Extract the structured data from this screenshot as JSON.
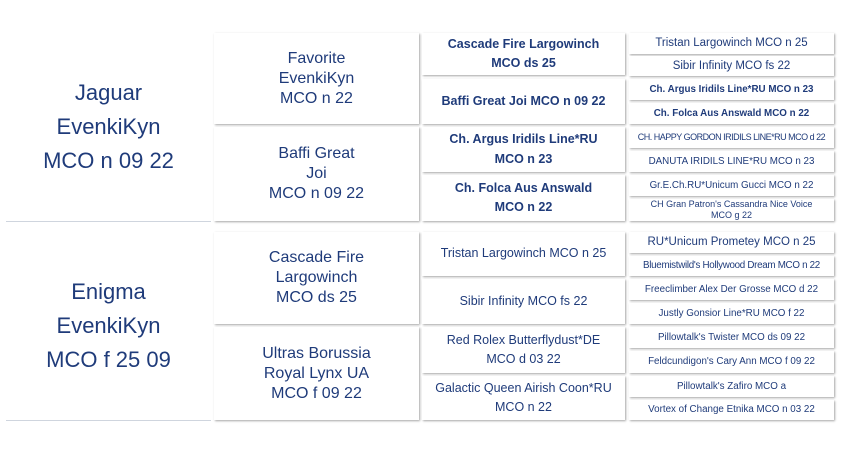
{
  "pedigree": {
    "sire": {
      "name": "Jaguar\nEvenkiKyn\nMCO n 09 22",
      "sire": {
        "name": "Favorite\nEvenkiKyn\nMCO n 22",
        "sire": {
          "name": "Cascade Fire Largowinch\nMCO ds 25",
          "sire": "Tristan Largowinch MCO n 25",
          "dam": "Sibir Infinity  MCO fs 22"
        },
        "dam": {
          "name": "Baffi Great Joi  MCO n 09 22",
          "sire": "Ch. Argus Iridils Line*RU MCO n 23",
          "dam": "Ch. Folca Aus Answald MCO n 22"
        }
      },
      "dam": {
        "name": "Baffi Great\nJoi\nMCO n 09 22",
        "sire": {
          "name": "Ch. Argus Iridils Line*RU\nMCO n 23",
          "sire": "CH. HAPPY GORDON IRIDILS LINE*RU MCO d 22",
          "dam": "DANUTA IRIDILS LINE*RU MCO n 23"
        },
        "dam": {
          "name": "Ch. Folca Aus Answald\nMCO n 22",
          "sire": "Gr.E.Ch.RU*Unicum Gucci MCO n 22",
          "dam": "CH Gran Patron's Cassandra Nice Voice\nMCO g 22"
        }
      }
    },
    "dam": {
      "name": "Enigma\nEvenkiKyn\nMCO f 25 09",
      "sire": {
        "name": "Cascade Fire\nLargowinch\nMCO ds 25",
        "sire": {
          "name": "Tristan Largowinch MCO n 25",
          "sire": "RU*Unicum Prometey MCO n 25",
          "dam": "Bluemistwild's Hollywood Dream MCO n 22"
        },
        "dam": {
          "name": "Sibir Infinity  MCO fs 22",
          "sire": "Freeclimber Alex Der Grosse MCO d 22",
          "dam": "Justly Gonsior Line*RU MCO f  22"
        }
      },
      "dam": {
        "name": "Ultras Borussia\nRoyal Lynx UA\nMCO f 09 22",
        "sire": {
          "name": "Red Rolex Butterflydust*DE\nMCO d 03 22",
          "sire": "Pillowtalk's Twister MCO ds 09 22",
          "dam": "Feldcundigon's Cary Ann MCO f 09 22"
        },
        "dam": {
          "name": "Galactic Queen Airish Coon*RU\nMCO n 22",
          "sire": "Pillowtalk's Zafiro MCO a",
          "dam": "Vortex of Change Etnika MCO n 03 22"
        }
      }
    }
  }
}
